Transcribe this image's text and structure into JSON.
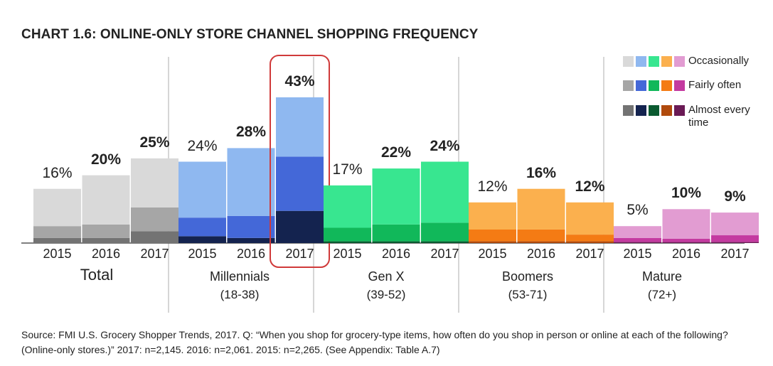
{
  "chart_data": {
    "type": "bar",
    "stacked": true,
    "title": "CHART 1.6: ONLINE-ONLY STORE CHANNEL SHOPPING FREQUENCY",
    "legend": [
      "Occasionally",
      "Fairly often",
      "Almost every time"
    ],
    "legend_placement": "top-right",
    "ylim": [
      0,
      45
    ],
    "grid": false,
    "groups": [
      {
        "name": "Total",
        "subtitle": "",
        "colors": {
          "Occasionally": "#d9d9d9",
          "Fairly often": "#a6a6a6",
          "Almost every time": "#737373"
        },
        "bars": [
          {
            "year": "2015",
            "total": 16,
            "label": "16%",
            "bold": false,
            "values": {
              "Almost every time": 1.5,
              "Fairly often": 3.5,
              "Occasionally": 11
            }
          },
          {
            "year": "2016",
            "total": 20,
            "label": "20%",
            "bold": true,
            "values": {
              "Almost every time": 1.5,
              "Fairly often": 4,
              "Occasionally": 14.5
            }
          },
          {
            "year": "2017",
            "total": 25,
            "label": "25%",
            "bold": true,
            "values": {
              "Almost every time": 3.5,
              "Fairly often": 7,
              "Occasionally": 14.5
            }
          }
        ]
      },
      {
        "name": "Millennials",
        "subtitle": "(18-38)",
        "colors": {
          "Occasionally": "#8fb8f0",
          "Fairly often": "#4468d8",
          "Almost every time": "#14234f"
        },
        "bars": [
          {
            "year": "2015",
            "total": 24,
            "label": "24%",
            "bold": false,
            "values": {
              "Almost every time": 2,
              "Fairly often": 5.5,
              "Occasionally": 16.5
            }
          },
          {
            "year": "2016",
            "total": 28,
            "label": "28%",
            "bold": true,
            "values": {
              "Almost every time": 1.5,
              "Fairly often": 6.5,
              "Occasionally": 20
            }
          },
          {
            "year": "2017",
            "total": 43,
            "label": "43%",
            "bold": true,
            "values": {
              "Almost every time": 9.5,
              "Fairly often": 16,
              "Occasionally": 17.5
            }
          }
        ]
      },
      {
        "name": "Gen X",
        "subtitle": "(39-52)",
        "colors": {
          "Occasionally": "#38e690",
          "Fairly often": "#11b85a",
          "Almost every time": "#0a5a30"
        },
        "bars": [
          {
            "year": "2015",
            "total": 17,
            "label": "17%",
            "bold": false,
            "values": {
              "Almost every time": 0.5,
              "Fairly often": 4,
              "Occasionally": 12.5
            }
          },
          {
            "year": "2016",
            "total": 22,
            "label": "22%",
            "bold": true,
            "values": {
              "Almost every time": 0.5,
              "Fairly often": 5,
              "Occasionally": 16.5
            }
          },
          {
            "year": "2017",
            "total": 24,
            "label": "24%",
            "bold": true,
            "values": {
              "Almost every time": 0.5,
              "Fairly often": 5.5,
              "Occasionally": 18
            }
          }
        ]
      },
      {
        "name": "Boomers",
        "subtitle": "(53-71)",
        "colors": {
          "Occasionally": "#fbb04e",
          "Fairly often": "#f47b14",
          "Almost every time": "#b04a0c"
        },
        "bars": [
          {
            "year": "2015",
            "total": 12,
            "label": "12%",
            "bold": false,
            "values": {
              "Almost every time": 0.5,
              "Fairly often": 3.5,
              "Occasionally": 8
            }
          },
          {
            "year": "2016",
            "total": 16,
            "label": "16%",
            "bold": true,
            "values": {
              "Almost every time": 0.5,
              "Fairly often": 3.5,
              "Occasionally": 12
            }
          },
          {
            "year": "2017",
            "total": 12,
            "label": "12%",
            "bold": true,
            "values": {
              "Almost every time": 0.5,
              "Fairly often": 2,
              "Occasionally": 9.5
            }
          }
        ]
      },
      {
        "name": "Mature",
        "subtitle": "(72+)",
        "colors": {
          "Occasionally": "#e29cd2",
          "Fairly often": "#c43aa0",
          "Almost every time": "#6a1a55"
        },
        "bars": [
          {
            "year": "2015",
            "total": 5,
            "label": "5%",
            "bold": false,
            "values": {
              "Almost every time": 0.3,
              "Fairly often": 1.2,
              "Occasionally": 3.5
            }
          },
          {
            "year": "2016",
            "total": 10,
            "label": "10%",
            "bold": true,
            "values": {
              "Almost every time": 0.3,
              "Fairly often": 1,
              "Occasionally": 8.7
            }
          },
          {
            "year": "2017",
            "total": 9,
            "label": "9%",
            "bold": true,
            "values": {
              "Almost every time": 0.3,
              "Fairly often": 2,
              "Occasionally": 6.7
            }
          }
        ]
      }
    ],
    "highlight": {
      "group": "Millennials",
      "year": "2017",
      "color": "#d03a3a"
    }
  },
  "legend_labels": {
    "occasionally": "Occasionally",
    "fairly_often": "Fairly often",
    "almost_every_time": "Almost every time"
  },
  "source": "Source: FMI U.S. Grocery Shopper Trends, 2017. Q: “When you shop for grocery-type items, how often do you shop in person or online at each of the following? (Online-only stores.)” 2017: n=2,145. 2016: n=2,061. 2015: n=2,265. (See Appendix: Table A.7)"
}
